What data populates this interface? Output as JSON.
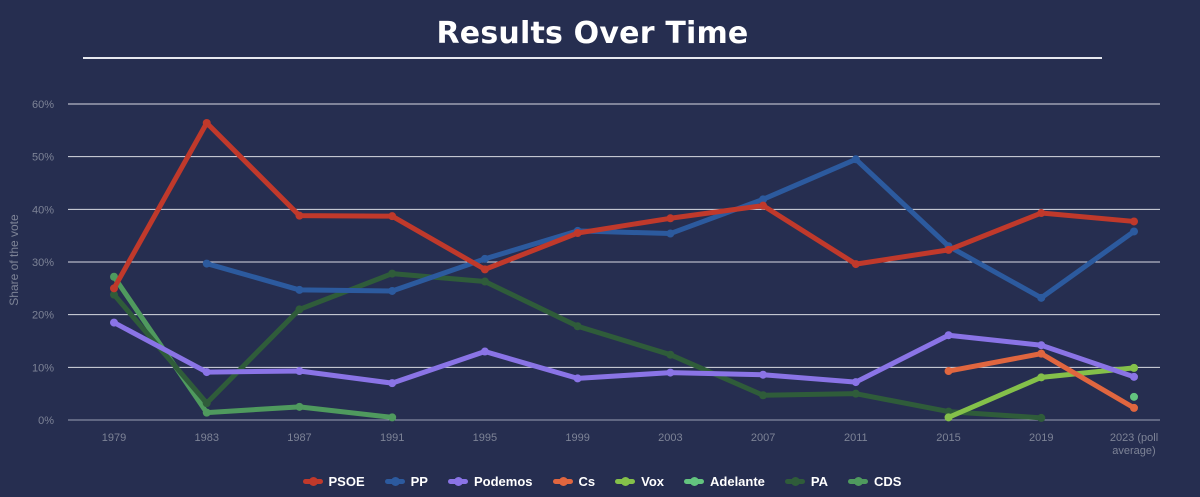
{
  "title": "Results Over Time",
  "chart_data": {
    "type": "line",
    "ylabel": "Share of the vote",
    "xlabel": "",
    "ylim": [
      0,
      60
    ],
    "yticks": [
      "0%",
      "10%",
      "20%",
      "30%",
      "40%",
      "50%",
      "60%"
    ],
    "grid": true,
    "legend_position": "bottom",
    "categories": [
      "1979",
      "1983",
      "1987",
      "1991",
      "1995",
      "1999",
      "2003",
      "2007",
      "2011",
      "2015",
      "2019",
      "2023 (poll average)"
    ],
    "category_labels": [
      [
        "1979"
      ],
      [
        "1983"
      ],
      [
        "1987"
      ],
      [
        "1991"
      ],
      [
        "1995"
      ],
      [
        "1999"
      ],
      [
        "2003"
      ],
      [
        "2007"
      ],
      [
        "2011"
      ],
      [
        "2015"
      ],
      [
        "2019"
      ],
      [
        "2023 (poll",
        "average)"
      ]
    ],
    "series": [
      {
        "name": "PSOE",
        "color": "#c0392b",
        "values": [
          25,
          56.4,
          38.8,
          38.7,
          28.6,
          35.5,
          38.3,
          40.7,
          29.6,
          32.3,
          39.3,
          37.7
        ]
      },
      {
        "name": "PP",
        "color": "#2c5a9e",
        "values": [
          null,
          29.7,
          24.7,
          24.5,
          30.6,
          35.9,
          35.4,
          41.9,
          49.5,
          33.0,
          23.2,
          35.8
        ]
      },
      {
        "name": "Podemos",
        "color": "#8a74e6",
        "values": [
          18.5,
          9.1,
          9.3,
          7.0,
          13.0,
          7.9,
          9.0,
          8.6,
          7.2,
          16.1,
          14.2,
          8.2
        ]
      },
      {
        "name": "Cs",
        "color": "#e0663f",
        "values": [
          null,
          null,
          null,
          null,
          null,
          null,
          null,
          null,
          null,
          9.3,
          12.6,
          2.3
        ]
      },
      {
        "name": "Vox",
        "color": "#84c04a",
        "values": [
          null,
          null,
          null,
          null,
          null,
          null,
          null,
          null,
          null,
          0.5,
          8.1,
          9.9
        ]
      },
      {
        "name": "Adelante",
        "color": "#63c47f",
        "values": [
          null,
          null,
          null,
          null,
          null,
          null,
          null,
          null,
          null,
          null,
          null,
          4.4
        ]
      },
      {
        "name": "PA",
        "color": "#2f5c3a",
        "values": [
          23.8,
          3.2,
          21.0,
          27.8,
          26.3,
          17.8,
          12.4,
          4.7,
          5.0,
          1.6,
          0.4,
          null
        ]
      },
      {
        "name": "CDS",
        "color": "#4f9a5e",
        "values": [
          27.2,
          1.4,
          2.5,
          0.5,
          null,
          null,
          null,
          null,
          null,
          null,
          null,
          null
        ]
      }
    ]
  }
}
